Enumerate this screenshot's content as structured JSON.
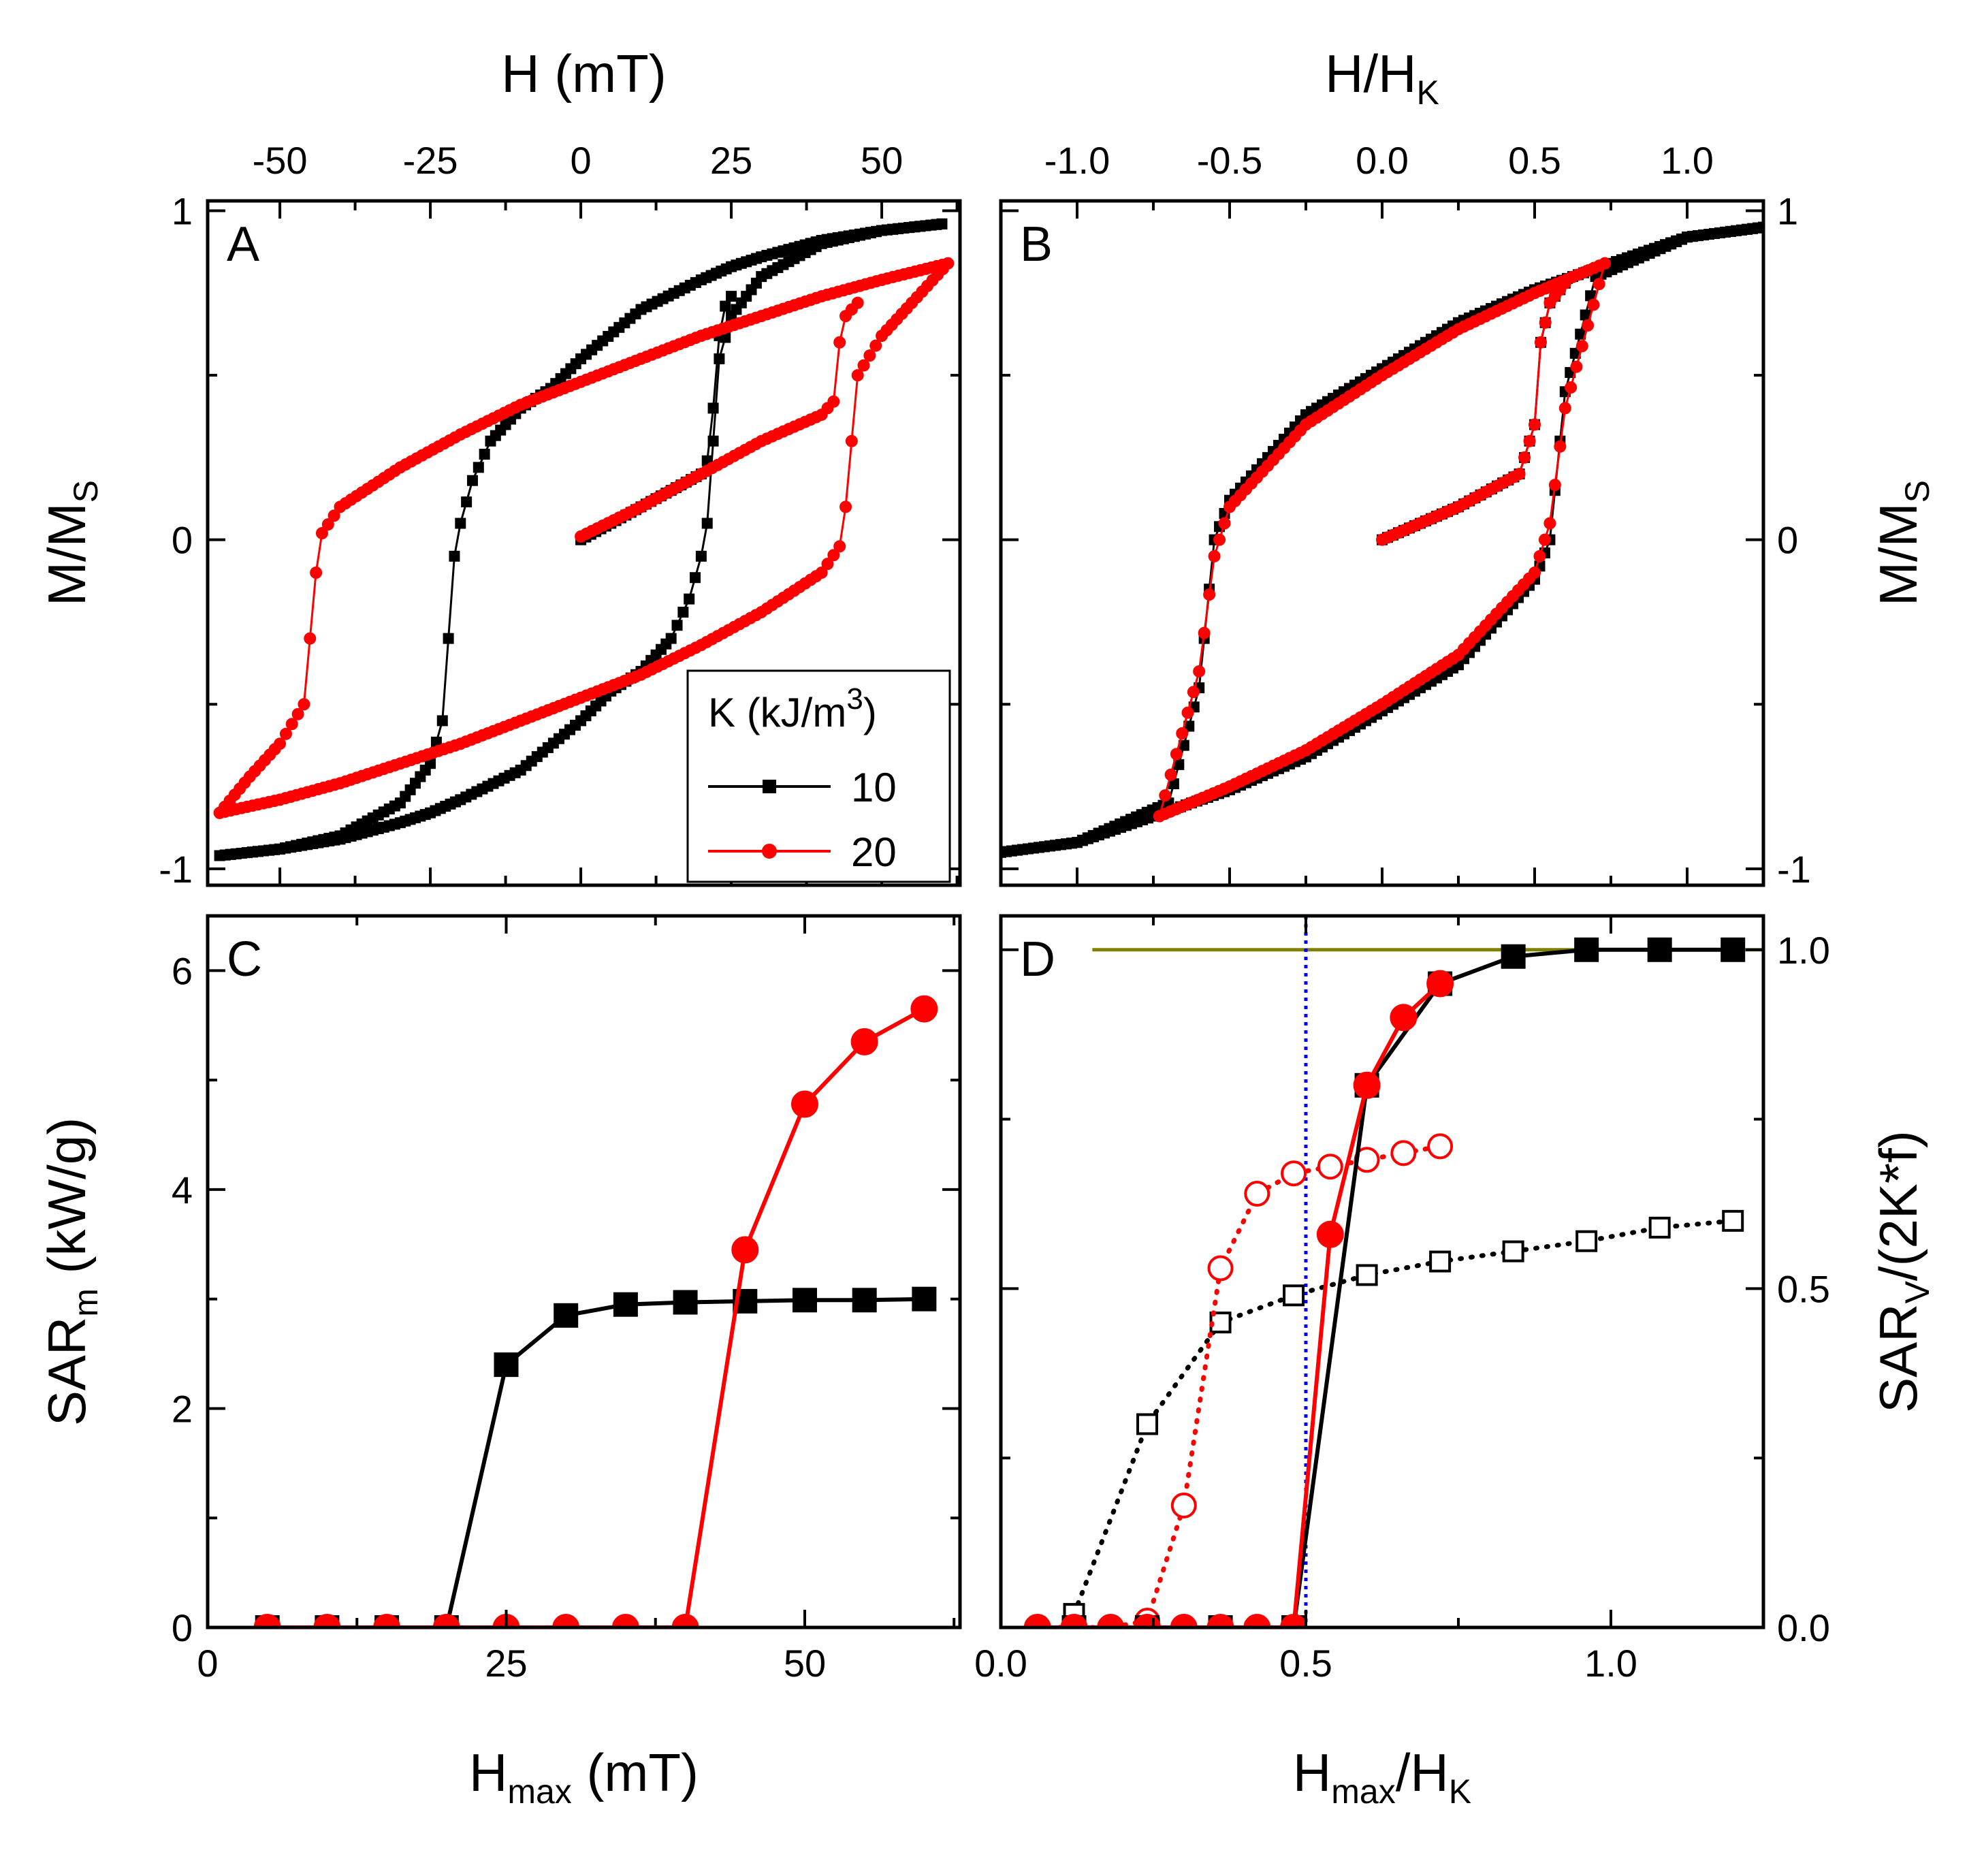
{
  "figure": {
    "legend": {
      "title": "K (kJ/m",
      "title_sup": "3",
      "title_end": ")",
      "entries": [
        "10",
        "20"
      ],
      "placement": "bottom-right of panel A"
    },
    "colors": {
      "k10": "#000000",
      "k20": "#ff0000",
      "guide_dotted": "#0000ff",
      "guide_line": "#808000"
    }
  },
  "chart_data": [
    {
      "id": "A",
      "type": "line",
      "letter": "A",
      "title_top": "H (mT)",
      "xlim": [
        -62,
        63
      ],
      "x_ticks": [
        -50,
        -25,
        0,
        25,
        50
      ],
      "ylabel_main": "M/M",
      "ylabel_sub": "S",
      "ylim": [
        -1.05,
        1.03
      ],
      "y_ticks": [
        -1,
        0,
        1
      ],
      "y_tick_labels": [
        "-1",
        "0",
        "1"
      ],
      "series": [
        {
          "name": "10",
          "color": "#000000",
          "marker": "square",
          "branches": [
            [
              [
                0,
                0
              ],
              [
                5,
                0.05
              ],
              [
                10,
                0.1
              ],
              [
                15,
                0.15
              ],
              [
                20,
                0.2
              ],
              [
                21,
                0.24
              ],
              [
                22,
                0.4
              ],
              [
                23,
                0.62
              ],
              [
                24,
                0.71
              ],
              [
                25,
                0.74
              ]
            ],
            [
              [
                60,
                0.96
              ],
              [
                50,
                0.94
              ],
              [
                40,
                0.91
              ],
              [
                30,
                0.86
              ],
              [
                25,
                0.83
              ],
              [
                20,
                0.79
              ],
              [
                10,
                0.7
              ],
              [
                0,
                0.55
              ],
              [
                -5,
                0.46
              ],
              [
                -10,
                0.4
              ],
              [
                -15,
                0.3
              ],
              [
                -18,
                0.18
              ],
              [
                -20,
                0.05
              ],
              [
                -21,
                -0.05
              ],
              [
                -22,
                -0.3
              ],
              [
                -23,
                -0.55
              ],
              [
                -25,
                -0.68
              ],
              [
                -30,
                -0.8
              ],
              [
                -40,
                -0.9
              ],
              [
                -50,
                -0.94
              ],
              [
                -60,
                -0.96
              ]
            ],
            [
              [
                -60,
                -0.96
              ],
              [
                -50,
                -0.94
              ],
              [
                -40,
                -0.91
              ],
              [
                -30,
                -0.86
              ],
              [
                -25,
                -0.83
              ],
              [
                -20,
                -0.79
              ],
              [
                -10,
                -0.7
              ],
              [
                0,
                -0.55
              ],
              [
                5,
                -0.46
              ],
              [
                10,
                -0.4
              ],
              [
                15,
                -0.3
              ],
              [
                18,
                -0.18
              ],
              [
                20,
                -0.05
              ],
              [
                21,
                0.05
              ],
              [
                22,
                0.3
              ],
              [
                23,
                0.55
              ],
              [
                25,
                0.68
              ],
              [
                30,
                0.8
              ],
              [
                40,
                0.9
              ],
              [
                50,
                0.94
              ],
              [
                60,
                0.96
              ]
            ]
          ]
        },
        {
          "name": "20",
          "color": "#ff0000",
          "marker": "circle",
          "branches": [
            [
              [
                0,
                0.01
              ],
              [
                10,
                0.1
              ],
              [
                20,
                0.2
              ],
              [
                30,
                0.3
              ],
              [
                40,
                0.38
              ],
              [
                42,
                0.42
              ],
              [
                43,
                0.6
              ],
              [
                44,
                0.68
              ],
              [
                46,
                0.72
              ]
            ],
            [
              [
                61,
                0.84
              ],
              [
                50,
                0.79
              ],
              [
                40,
                0.74
              ],
              [
                30,
                0.68
              ],
              [
                20,
                0.62
              ],
              [
                10,
                0.55
              ],
              [
                0,
                0.48
              ],
              [
                -10,
                0.41
              ],
              [
                -20,
                0.32
              ],
              [
                -30,
                0.22
              ],
              [
                -40,
                0.1
              ],
              [
                -43,
                0.02
              ],
              [
                -44,
                -0.1
              ],
              [
                -45,
                -0.3
              ],
              [
                -46,
                -0.5
              ],
              [
                -50,
                -0.62
              ],
              [
                -55,
                -0.72
              ],
              [
                -60,
                -0.83
              ]
            ],
            [
              [
                -60,
                -0.83
              ],
              [
                -50,
                -0.79
              ],
              [
                -40,
                -0.74
              ],
              [
                -30,
                -0.68
              ],
              [
                -20,
                -0.62
              ],
              [
                -10,
                -0.55
              ],
              [
                0,
                -0.48
              ],
              [
                10,
                -0.41
              ],
              [
                20,
                -0.32
              ],
              [
                30,
                -0.22
              ],
              [
                40,
                -0.1
              ],
              [
                43,
                -0.02
              ],
              [
                44,
                0.1
              ],
              [
                45,
                0.3
              ],
              [
                46,
                0.5
              ],
              [
                50,
                0.62
              ],
              [
                55,
                0.72
              ],
              [
                61,
                0.84
              ]
            ]
          ]
        }
      ]
    },
    {
      "id": "B",
      "type": "line",
      "letter": "B",
      "title_top": "H/H",
      "title_top_sub": "K",
      "xlim": [
        -1.25,
        1.25
      ],
      "x_ticks": [
        -1.0,
        -0.5,
        0.0,
        0.5,
        1.0
      ],
      "x_tick_labels": [
        "-1.0",
        "-0.5",
        "0.0",
        "0.5",
        "1.0"
      ],
      "ylabel_main": "M/M",
      "ylabel_sub": "S",
      "ylim": [
        -1.05,
        1.03
      ],
      "y_ticks": [
        -1,
        0,
        1
      ],
      "y_tick_labels": [
        "-1",
        "0",
        "1"
      ],
      "series": [
        {
          "name": "10",
          "color": "#000000",
          "marker": "square",
          "branches": [
            [
              [
                0,
                0
              ],
              [
                0.25,
                0.1
              ],
              [
                0.45,
                0.2
              ],
              [
                0.5,
                0.35
              ],
              [
                0.52,
                0.6
              ],
              [
                0.55,
                0.72
              ],
              [
                0.6,
                0.78
              ]
            ],
            [
              [
                1.25,
                0.95
              ],
              [
                1.0,
                0.92
              ],
              [
                0.75,
                0.84
              ],
              [
                0.5,
                0.76
              ],
              [
                0.25,
                0.66
              ],
              [
                0,
                0.52
              ],
              [
                -0.25,
                0.38
              ],
              [
                -0.5,
                0.12
              ],
              [
                -0.55,
                0
              ],
              [
                -0.6,
                -0.45
              ],
              [
                -0.7,
                -0.8
              ],
              [
                -1.0,
                -0.92
              ],
              [
                -1.25,
                -0.95
              ]
            ],
            [
              [
                -1.25,
                -0.95
              ],
              [
                -1.0,
                -0.92
              ],
              [
                -0.75,
                -0.84
              ],
              [
                -0.5,
                -0.76
              ],
              [
                -0.25,
                -0.66
              ],
              [
                0,
                -0.52
              ],
              [
                0.25,
                -0.38
              ],
              [
                0.5,
                -0.12
              ],
              [
                0.55,
                0
              ],
              [
                0.6,
                0.45
              ],
              [
                0.7,
                0.8
              ],
              [
                1.0,
                0.92
              ],
              [
                1.25,
                0.95
              ]
            ]
          ]
        },
        {
          "name": "20",
          "color": "#ff0000",
          "marker": "circle",
          "branches": [
            [
              [
                0,
                0
              ],
              [
                0.25,
                0.1
              ],
              [
                0.45,
                0.2
              ],
              [
                0.5,
                0.35
              ],
              [
                0.52,
                0.6
              ],
              [
                0.55,
                0.72
              ],
              [
                0.6,
                0.78
              ]
            ],
            [
              [
                0.73,
                0.84
              ],
              [
                0.5,
                0.75
              ],
              [
                0.25,
                0.64
              ],
              [
                0,
                0.5
              ],
              [
                -0.25,
                0.35
              ],
              [
                -0.5,
                0.1
              ],
              [
                -0.55,
                -0.05
              ],
              [
                -0.6,
                -0.4
              ],
              [
                -0.73,
                -0.84
              ]
            ],
            [
              [
                -0.73,
                -0.84
              ],
              [
                -0.5,
                -0.75
              ],
              [
                -0.25,
                -0.64
              ],
              [
                0,
                -0.5
              ],
              [
                0.25,
                -0.35
              ],
              [
                0.5,
                -0.1
              ],
              [
                0.55,
                0.05
              ],
              [
                0.6,
                0.4
              ],
              [
                0.73,
                0.84
              ]
            ]
          ]
        }
      ]
    },
    {
      "id": "C",
      "type": "line",
      "letter": "C",
      "xlabel_main": "H",
      "xlabel_sub": "max",
      "xlabel_end": " (mT)",
      "xlim": [
        0,
        63
      ],
      "x_ticks": [
        0,
        25,
        50
      ],
      "x_tick_labels": [
        "0",
        "25",
        "50"
      ],
      "ylabel_main": "SAR",
      "ylabel_sub": "m",
      "ylabel_end": " (kW/g)",
      "ylim": [
        0,
        6.5
      ],
      "y_ticks": [
        0,
        2,
        4,
        6
      ],
      "y_tick_labels": [
        "0",
        "2",
        "4",
        "6"
      ],
      "series": [
        {
          "name": "10",
          "color": "#000000",
          "marker": "square",
          "x": [
            5,
            10,
            15,
            20,
            25,
            30,
            35,
            40,
            45,
            50,
            55,
            60
          ],
          "y": [
            0,
            0,
            0,
            0,
            2.4,
            2.85,
            2.95,
            2.97,
            2.98,
            2.99,
            2.99,
            3.0
          ]
        },
        {
          "name": "20",
          "color": "#ff0000",
          "marker": "circle",
          "x": [
            5,
            10,
            15,
            20,
            25,
            30,
            35,
            40,
            45,
            50,
            55,
            60
          ],
          "y": [
            0,
            0,
            0,
            0,
            0,
            0,
            0,
            0,
            3.45,
            4.78,
            5.35,
            5.65
          ]
        }
      ]
    },
    {
      "id": "D",
      "type": "line",
      "letter": "D",
      "xlabel_main": "H",
      "xlabel_sub": "max",
      "xlabel_mid": "/H",
      "xlabel_sub2": "K",
      "xlim": [
        0,
        1.25
      ],
      "x_ticks": [
        0.0,
        0.5,
        1.0
      ],
      "x_tick_labels": [
        "0.0",
        "0.5",
        "1.0"
      ],
      "ylabel_main": "SAR",
      "ylabel_sub": "V",
      "ylabel_end": "/(2K*f)",
      "ylim": [
        0,
        1.05
      ],
      "y_ticks": [
        0.0,
        0.5,
        1.0
      ],
      "y_tick_labels": [
        "0.0",
        "0.5",
        "1.0"
      ],
      "vline_x": 0.5,
      "hline_y": 1.0,
      "hline_x_start": 0.15,
      "series": [
        {
          "name": "10 filled",
          "color": "#000000",
          "marker": "square",
          "filled": true,
          "style": "solid",
          "x": [
            0.12,
            0.24,
            0.36,
            0.48,
            0.6,
            0.72,
            0.84,
            0.96,
            1.08,
            1.2
          ],
          "y": [
            0,
            0,
            0,
            0,
            0.8,
            0.95,
            0.99,
            1.0,
            1.0,
            1.0
          ]
        },
        {
          "name": "20 filled",
          "color": "#ff0000",
          "marker": "circle",
          "filled": true,
          "style": "solid",
          "x": [
            0.06,
            0.12,
            0.18,
            0.24,
            0.3,
            0.36,
            0.42,
            0.48,
            0.54,
            0.6,
            0.66,
            0.72
          ],
          "y": [
            0,
            0,
            0,
            0,
            0,
            0,
            0,
            0,
            0.58,
            0.8,
            0.9,
            0.95
          ]
        },
        {
          "name": "10 open",
          "color": "#000000",
          "marker": "square",
          "filled": false,
          "style": "dotted",
          "x": [
            0.12,
            0.24,
            0.36,
            0.48,
            0.6,
            0.72,
            0.84,
            0.96,
            1.08,
            1.2
          ],
          "y": [
            0.02,
            0.3,
            0.45,
            0.49,
            0.52,
            0.54,
            0.555,
            0.57,
            0.59,
            0.6
          ]
        },
        {
          "name": "20 open",
          "color": "#ff0000",
          "marker": "circle",
          "filled": false,
          "style": "dotted",
          "x": [
            0.06,
            0.12,
            0.18,
            0.24,
            0.3,
            0.36,
            0.42,
            0.48,
            0.54,
            0.6,
            0.66,
            0.72
          ],
          "y": [
            0,
            0,
            0,
            0.01,
            0.18,
            0.53,
            0.64,
            0.67,
            0.68,
            0.69,
            0.7,
            0.71
          ]
        }
      ]
    }
  ]
}
